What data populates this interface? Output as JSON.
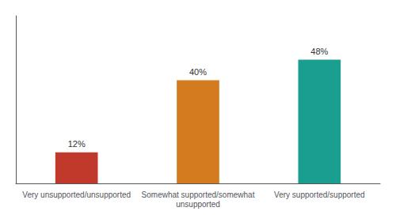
{
  "chart_data": {
    "type": "bar",
    "categories": [
      "Very unsupported/unsupported",
      "Somewhat supported/somewhat\nunsupported",
      "Very supported/supported"
    ],
    "values": [
      12,
      40,
      48
    ],
    "value_labels": [
      "12%",
      "40%",
      "48%"
    ],
    "colors": [
      "#c0392b",
      "#d47a1f",
      "#1a9e8f"
    ],
    "ylim": [
      0,
      65
    ],
    "grid": false,
    "data_labels": true,
    "tick_labels": "x"
  }
}
